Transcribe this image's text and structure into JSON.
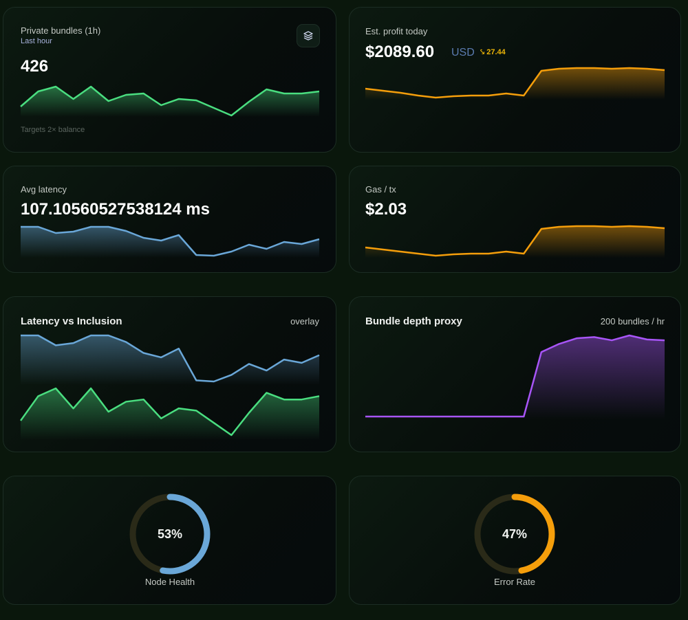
{
  "colors": {
    "green": "#4ade80",
    "blue": "#6aa7d8",
    "orange": "#f59e0b",
    "purple": "#a855f7",
    "track": "#2a2a18",
    "delta": "#eab308"
  },
  "cards": {
    "bundles": {
      "title": "Private bundles (1h)",
      "subtitle": "Last hour",
      "value": "426",
      "footnote": "Targets 2× balance",
      "icon": "layers-icon",
      "series": [
        15,
        37,
        44,
        26,
        44,
        23,
        32,
        34,
        17,
        26,
        24,
        13,
        2,
        22,
        40,
        34,
        34,
        37
      ]
    },
    "profit": {
      "title": "Est. profit today",
      "value": "$2089.60",
      "unit": "USD",
      "delta_icon": "trend-down-icon",
      "delta": "27.44",
      "series": [
        13,
        10,
        7,
        3,
        0,
        2,
        3,
        3,
        6,
        3,
        39,
        42,
        43,
        43,
        42,
        43,
        42,
        40
      ]
    },
    "latency": {
      "title": "Avg latency",
      "value": "107.10560527538124 ms",
      "series": [
        42,
        42,
        33,
        35,
        42,
        42,
        36,
        26,
        22,
        30,
        1,
        0,
        6,
        16,
        10,
        20,
        17,
        24
      ]
    },
    "gas": {
      "title": "Gas / tx",
      "value": "$2.03",
      "series": [
        12,
        9,
        6,
        3,
        0,
        2,
        3,
        3,
        6,
        3,
        39,
        42,
        43,
        43,
        42,
        43,
        42,
        40
      ]
    },
    "overlay": {
      "title": "Latency vs Inclusion",
      "note": "overlay"
    },
    "depth": {
      "title": "Bundle depth proxy",
      "note": "200 bundles / hr",
      "series": [
        0,
        0,
        0,
        0,
        0,
        0,
        0,
        0,
        0,
        0,
        159,
        179,
        193,
        196,
        188,
        200,
        190,
        188
      ]
    },
    "node_health": {
      "label": "Node Health",
      "value": "53%",
      "percent": 53
    },
    "error_rate": {
      "label": "Error Rate",
      "value": "47%",
      "percent": 47
    }
  }
}
